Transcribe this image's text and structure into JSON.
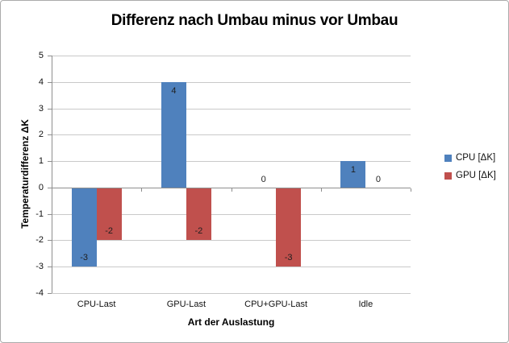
{
  "chart_data": {
    "type": "bar",
    "title": "Differenz nach Umbau minus vor Umbau",
    "xlabel": "Art der Auslastung",
    "ylabel": "Temperaturdifferenz ΔK",
    "categories": [
      "CPU-Last",
      "GPU-Last",
      "CPU+GPU-Last",
      "Idle"
    ],
    "series": [
      {
        "name": "CPU [ΔK]",
        "color": "#4f81bd",
        "values": [
          -3,
          4,
          0,
          1
        ]
      },
      {
        "name": "GPU [ΔK]",
        "color": "#c0504d",
        "values": [
          -2,
          -2,
          -3,
          0
        ]
      }
    ],
    "ylim": [
      -4,
      5
    ],
    "ytick_step": 1,
    "yticks": [
      5,
      4,
      3,
      2,
      1,
      0,
      -1,
      -2,
      -3,
      -4
    ],
    "grid": true,
    "data_labels": true,
    "legend_position": "right",
    "colors": {
      "gridline": "#c9c9c9",
      "axis": "#8e8e8e",
      "text": "#111111",
      "background": "#ffffff"
    }
  }
}
